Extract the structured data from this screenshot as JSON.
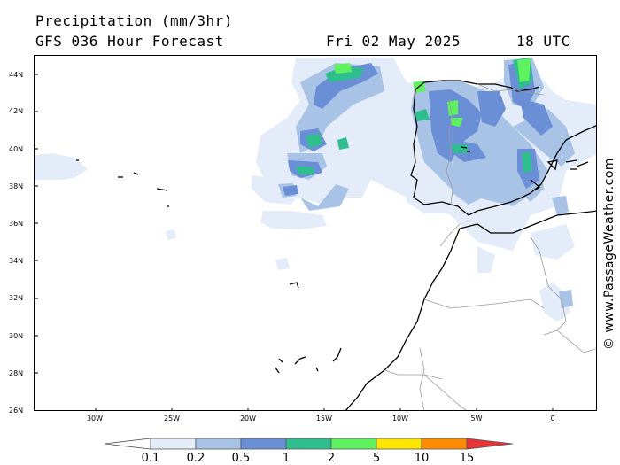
{
  "header": {
    "title": "Precipitation (mm/3hr)",
    "subtitle": "GFS 036 Hour Forecast",
    "date": "Fri 02 May 2025",
    "time": "18 UTC"
  },
  "map": {
    "lat_labels": [
      "44N",
      "42N",
      "40N",
      "38N",
      "36N",
      "34N",
      "32N",
      "30N",
      "28N",
      "26N"
    ],
    "lon_labels": [
      "30W",
      "25W",
      "20W",
      "15W",
      "10W",
      "5W",
      "0"
    ],
    "credit": "© www.PassageWeather.com"
  },
  "legend": {
    "labels": [
      "0.1",
      "0.2",
      "0.5",
      "1",
      "2",
      "5",
      "10",
      "15"
    ],
    "colors": [
      "#ffffff",
      "#e3ecf8",
      "#a9c3e6",
      "#6b8fd6",
      "#2fbf8f",
      "#5ef25e",
      "#ffe600",
      "#ff8c00",
      "#e8333a"
    ]
  },
  "colors": {
    "light": "#e3ecf8",
    "mid": "#a9c3e6",
    "blue": "#6b8fd6",
    "teal": "#2fbf8f",
    "green": "#5ef25e"
  }
}
